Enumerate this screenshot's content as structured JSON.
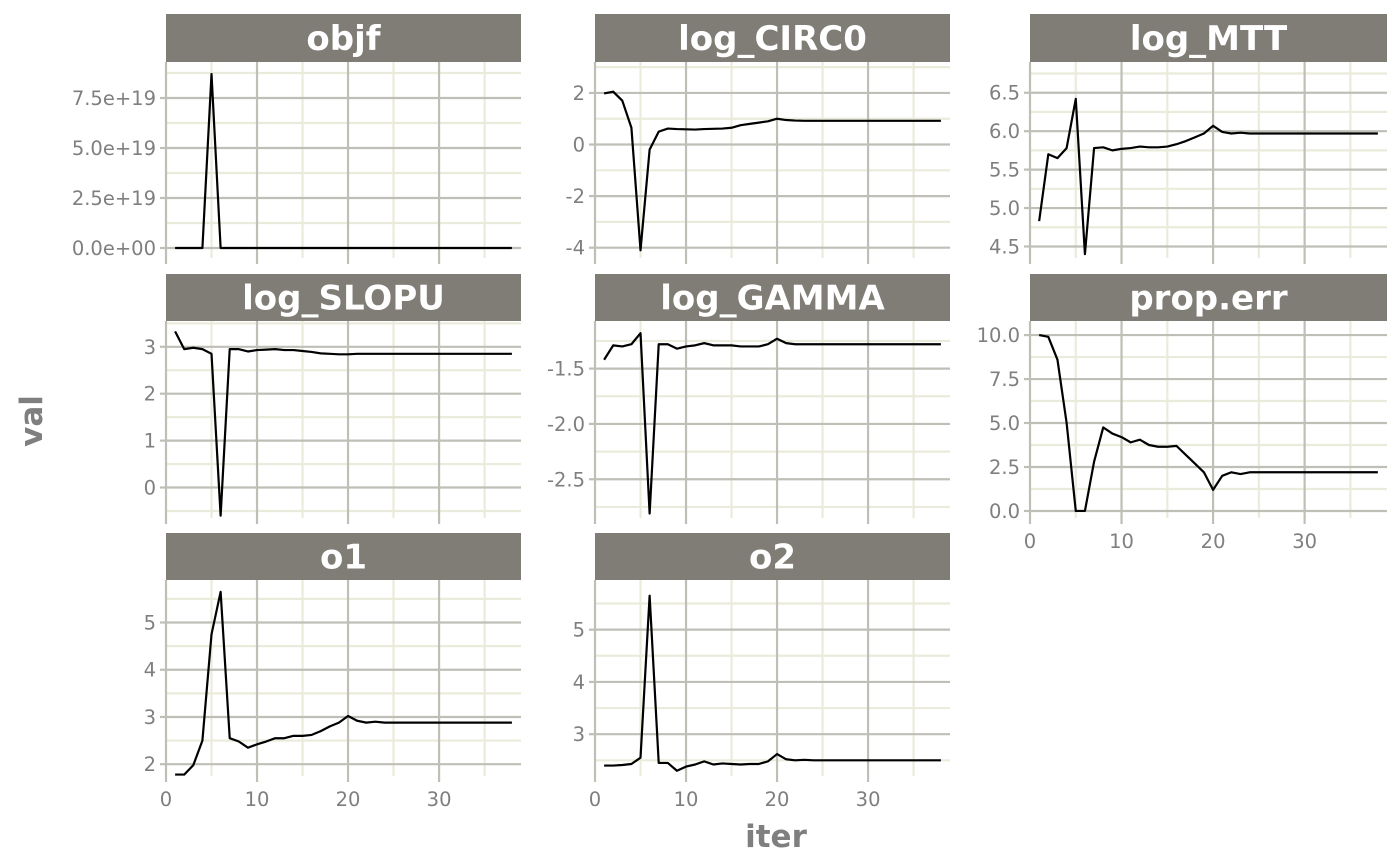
{
  "chart_data": {
    "type": "line",
    "xlabel": "iter",
    "ylabel": "val",
    "xlim": [
      0,
      39
    ],
    "x_ticks": [
      0,
      10,
      20,
      30
    ],
    "x_tick_labels": [
      "0",
      "10",
      "20",
      "30"
    ],
    "x": [
      1,
      2,
      3,
      4,
      5,
      6,
      7,
      8,
      9,
      10,
      11,
      12,
      13,
      14,
      15,
      16,
      17,
      18,
      19,
      20,
      21,
      22,
      23,
      24,
      25,
      26,
      27,
      28,
      29,
      30,
      31,
      32,
      33,
      34,
      35,
      36,
      37,
      38
    ],
    "panels": [
      {
        "title": "objf",
        "ylim": [
          -5e+18,
          9.3e+19
        ],
        "y_ticks": [
          0,
          2.5e+19,
          5e+19,
          7.5e+19
        ],
        "y_tick_labels": [
          "0.0e+00",
          "2.5e+19",
          "5.0e+19",
          "7.5e+19"
        ],
        "values": [
          0,
          0,
          0,
          0,
          8.7e+19,
          0,
          0,
          0,
          0,
          0,
          0,
          0,
          0,
          0,
          0,
          0,
          0,
          0,
          0,
          0,
          0,
          0,
          0,
          0,
          0,
          0,
          0,
          0,
          0,
          0,
          0,
          0,
          0,
          0,
          0,
          0,
          0,
          0
        ]
      },
      {
        "title": "log_CIRC0",
        "ylim": [
          -4.4,
          3.2
        ],
        "y_ticks": [
          -4,
          -2,
          0,
          2
        ],
        "y_tick_labels": [
          "-4",
          "-2",
          "0",
          "2"
        ],
        "values": [
          1.98,
          2.05,
          1.7,
          0.65,
          -4.1,
          -0.2,
          0.5,
          0.62,
          0.6,
          0.59,
          0.58,
          0.6,
          0.61,
          0.62,
          0.65,
          0.75,
          0.8,
          0.85,
          0.9,
          1.0,
          0.95,
          0.93,
          0.92,
          0.92,
          0.92,
          0.92,
          0.92,
          0.92,
          0.92,
          0.92,
          0.92,
          0.92,
          0.92,
          0.92,
          0.92,
          0.92,
          0.92,
          0.92
        ]
      },
      {
        "title": "log_MTT",
        "ylim": [
          4.35,
          6.9
        ],
        "y_ticks": [
          4.5,
          5.0,
          5.5,
          6.0,
          6.5
        ],
        "y_tick_labels": [
          "4.5",
          "5.0",
          "5.5",
          "6.0",
          "6.5"
        ],
        "values": [
          4.83,
          5.7,
          5.65,
          5.78,
          6.42,
          4.4,
          5.78,
          5.79,
          5.75,
          5.77,
          5.78,
          5.8,
          5.79,
          5.79,
          5.8,
          5.83,
          5.87,
          5.92,
          5.97,
          6.07,
          5.99,
          5.97,
          5.98,
          5.97,
          5.97,
          5.97,
          5.97,
          5.97,
          5.97,
          5.97,
          5.97,
          5.97,
          5.97,
          5.97,
          5.97,
          5.97,
          5.97,
          5.97
        ]
      },
      {
        "title": "log_SLOPU",
        "ylim": [
          -0.65,
          3.55
        ],
        "y_ticks": [
          0,
          1,
          2,
          3
        ],
        "y_tick_labels": [
          "0",
          "1",
          "2",
          "3"
        ],
        "values": [
          3.33,
          2.95,
          2.98,
          2.95,
          2.85,
          -0.6,
          2.95,
          2.95,
          2.9,
          2.93,
          2.94,
          2.95,
          2.93,
          2.93,
          2.91,
          2.89,
          2.86,
          2.85,
          2.84,
          2.84,
          2.85,
          2.85,
          2.85,
          2.85,
          2.85,
          2.85,
          2.85,
          2.85,
          2.85,
          2.85,
          2.85,
          2.85,
          2.85,
          2.85,
          2.85,
          2.85,
          2.85,
          2.85
        ]
      },
      {
        "title": "log_GAMMA",
        "ylim": [
          -2.85,
          -1.07
        ],
        "y_ticks": [
          -2.5,
          -2.0,
          -1.5
        ],
        "y_tick_labels": [
          "-2.5",
          "-2.0",
          "-1.5"
        ],
        "values": [
          -1.42,
          -1.29,
          -1.3,
          -1.28,
          -1.18,
          -2.81,
          -1.28,
          -1.28,
          -1.32,
          -1.3,
          -1.29,
          -1.27,
          -1.29,
          -1.29,
          -1.29,
          -1.3,
          -1.3,
          -1.3,
          -1.28,
          -1.23,
          -1.27,
          -1.28,
          -1.28,
          -1.28,
          -1.28,
          -1.28,
          -1.28,
          -1.28,
          -1.28,
          -1.28,
          -1.28,
          -1.28,
          -1.28,
          -1.28,
          -1.28,
          -1.28,
          -1.28,
          -1.28
        ]
      },
      {
        "title": "prop.err",
        "ylim": [
          -0.4,
          10.8
        ],
        "y_ticks": [
          0.0,
          2.5,
          5.0,
          7.5,
          10.0
        ],
        "y_tick_labels": [
          "0.0",
          "2.5",
          "5.0",
          "7.5",
          "10.0"
        ],
        "values": [
          10.0,
          9.9,
          8.6,
          5.0,
          0.0,
          0.0,
          2.8,
          4.75,
          4.4,
          4.2,
          3.9,
          4.05,
          3.75,
          3.65,
          3.65,
          3.7,
          3.2,
          2.7,
          2.2,
          1.2,
          2.0,
          2.2,
          2.1,
          2.2,
          2.2,
          2.2,
          2.2,
          2.2,
          2.2,
          2.2,
          2.2,
          2.2,
          2.2,
          2.2,
          2.2,
          2.2,
          2.2,
          2.2
        ]
      },
      {
        "title": "o1",
        "ylim": [
          1.75,
          5.9
        ],
        "y_ticks": [
          2,
          3,
          4,
          5
        ],
        "y_tick_labels": [
          "2",
          "3",
          "4",
          "5"
        ],
        "values": [
          1.78,
          1.78,
          1.98,
          2.5,
          4.75,
          5.65,
          2.55,
          2.48,
          2.35,
          2.42,
          2.48,
          2.55,
          2.55,
          2.6,
          2.6,
          2.62,
          2.7,
          2.8,
          2.88,
          3.02,
          2.92,
          2.88,
          2.9,
          2.88,
          2.88,
          2.88,
          2.88,
          2.88,
          2.88,
          2.88,
          2.88,
          2.88,
          2.88,
          2.88,
          2.88,
          2.88,
          2.88,
          2.88
        ]
      },
      {
        "title": "o2",
        "ylim": [
          2.2,
          5.95
        ],
        "y_ticks": [
          3,
          4,
          5
        ],
        "y_tick_labels": [
          "3",
          "4",
          "5"
        ],
        "values": [
          2.4,
          2.4,
          2.41,
          2.43,
          2.55,
          5.65,
          2.45,
          2.45,
          2.3,
          2.38,
          2.42,
          2.48,
          2.42,
          2.44,
          2.43,
          2.42,
          2.43,
          2.43,
          2.48,
          2.62,
          2.52,
          2.5,
          2.51,
          2.5,
          2.5,
          2.5,
          2.5,
          2.5,
          2.5,
          2.5,
          2.5,
          2.5,
          2.5,
          2.5,
          2.5,
          2.5,
          2.5,
          2.5
        ]
      }
    ]
  }
}
